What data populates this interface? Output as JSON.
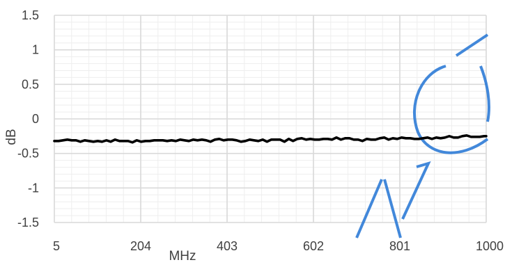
{
  "chart_data": {
    "type": "line",
    "title": "",
    "xlabel": "MHz",
    "ylabel": "dB",
    "xlim": [
      5,
      1000
    ],
    "ylim": [
      -1.5,
      1.5
    ],
    "x_ticks": [
      "5",
      "204",
      "403",
      "602",
      "801",
      "1000"
    ],
    "y_ticks": [
      "1.5",
      "1",
      "0.5",
      "0",
      "-0.5",
      "-1",
      "-1.5"
    ],
    "grid": true,
    "legend": "none",
    "series": [
      {
        "color": "#000000",
        "x": [
          5,
          15,
          25,
          35,
          45,
          55,
          65,
          75,
          85,
          95,
          105,
          115,
          125,
          135,
          145,
          155,
          165,
          175,
          185,
          195,
          205,
          215,
          225,
          235,
          245,
          255,
          265,
          275,
          285,
          295,
          305,
          315,
          325,
          335,
          345,
          355,
          365,
          375,
          385,
          395,
          405,
          415,
          425,
          435,
          445,
          455,
          465,
          475,
          485,
          495,
          505,
          515,
          525,
          535,
          545,
          555,
          565,
          575,
          585,
          595,
          605,
          615,
          625,
          635,
          645,
          655,
          665,
          675,
          685,
          695,
          705,
          715,
          725,
          735,
          745,
          755,
          765,
          775,
          785,
          795,
          805,
          815,
          825,
          835,
          845,
          855,
          865,
          875,
          885,
          895,
          905,
          915,
          925,
          935,
          945,
          955,
          965,
          975,
          985,
          995,
          1000
        ],
        "values": [
          -0.32,
          -0.32,
          -0.31,
          -0.3,
          -0.31,
          -0.31,
          -0.33,
          -0.31,
          -0.32,
          -0.33,
          -0.32,
          -0.33,
          -0.31,
          -0.33,
          -0.3,
          -0.32,
          -0.32,
          -0.32,
          -0.34,
          -0.31,
          -0.33,
          -0.32,
          -0.32,
          -0.31,
          -0.31,
          -0.31,
          -0.32,
          -0.31,
          -0.32,
          -0.3,
          -0.31,
          -0.32,
          -0.3,
          -0.31,
          -0.3,
          -0.31,
          -0.33,
          -0.3,
          -0.29,
          -0.31,
          -0.3,
          -0.3,
          -0.31,
          -0.33,
          -0.32,
          -0.3,
          -0.31,
          -0.32,
          -0.3,
          -0.33,
          -0.3,
          -0.3,
          -0.3,
          -0.33,
          -0.29,
          -0.32,
          -0.29,
          -0.28,
          -0.3,
          -0.29,
          -0.3,
          -0.3,
          -0.29,
          -0.29,
          -0.3,
          -0.27,
          -0.3,
          -0.28,
          -0.28,
          -0.3,
          -0.3,
          -0.32,
          -0.29,
          -0.3,
          -0.3,
          -0.28,
          -0.27,
          -0.3,
          -0.28,
          -0.29,
          -0.27,
          -0.28,
          -0.28,
          -0.29,
          -0.29,
          -0.28,
          -0.27,
          -0.29,
          -0.27,
          -0.28,
          -0.27,
          -0.25,
          -0.27,
          -0.27,
          -0.25,
          -0.24,
          -0.26,
          -0.26,
          -0.26,
          -0.25,
          -0.25
        ]
      }
    ]
  },
  "watermark": {
    "color": "#2e7bd6"
  }
}
